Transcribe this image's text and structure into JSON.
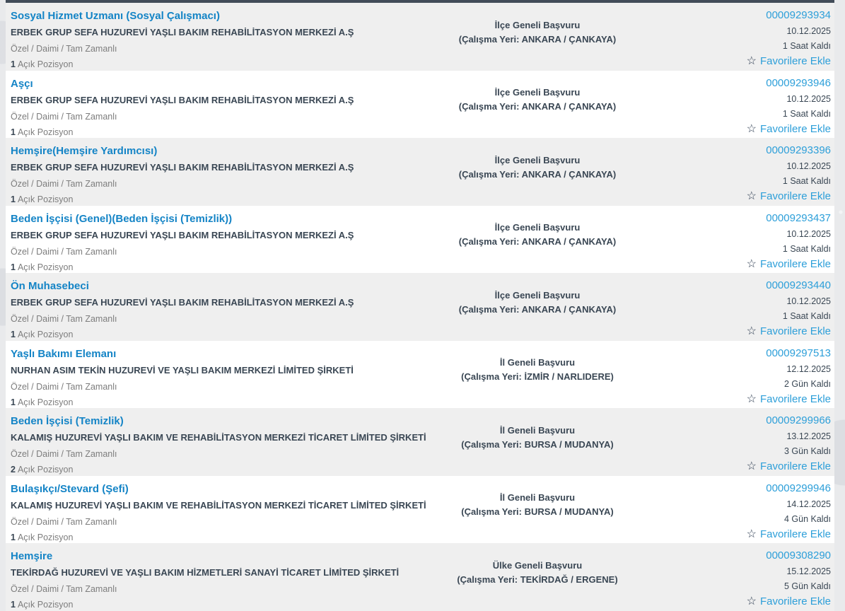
{
  "page": {
    "favorite_label": "Favorilere Ekle",
    "star_icon": "☆"
  },
  "colors": {
    "title_blue": "#1484c6",
    "link_blue": "#2d9fd9",
    "dark_text": "#3a4754",
    "muted_text": "#7d7d7d",
    "row_alt_bg": "#efefef",
    "top_bar": "#424c59"
  },
  "listings": [
    {
      "title": "Sosyal Hizmet Uzmanı (Sosyal Çalışmacı)",
      "company": "ERBEK GRUP SEFA HUZUREVİ YAŞLI BAKIM REHABİLİTASYON MERKEZİ A.Ş",
      "employment": "Özel / Daimi / Tam Zamanlı",
      "positions_count": "1",
      "positions_label": "Açık Pozisyon",
      "application_scope": "İlçe Geneli Başvuru",
      "workplace": "(Çalışma Yeri: ANKARA / ÇANKAYA)",
      "job_id": "00009293934",
      "date": "10.12.2025",
      "time_left": "1 Saat Kaldı"
    },
    {
      "title": "Aşçı",
      "company": "ERBEK GRUP SEFA HUZUREVİ YAŞLI BAKIM REHABİLİTASYON MERKEZİ A.Ş",
      "employment": "Özel / Daimi / Tam Zamanlı",
      "positions_count": "1",
      "positions_label": "Açık Pozisyon",
      "application_scope": "İlçe Geneli Başvuru",
      "workplace": "(Çalışma Yeri: ANKARA / ÇANKAYA)",
      "job_id": "00009293946",
      "date": "10.12.2025",
      "time_left": "1 Saat Kaldı"
    },
    {
      "title": "Hemşire(Hemşire Yardımcısı)",
      "company": "ERBEK GRUP SEFA HUZUREVİ YAŞLI BAKIM REHABİLİTASYON MERKEZİ A.Ş",
      "employment": "Özel / Daimi / Tam Zamanlı",
      "positions_count": "1",
      "positions_label": "Açık Pozisyon",
      "application_scope": "İlçe Geneli Başvuru",
      "workplace": "(Çalışma Yeri: ANKARA / ÇANKAYA)",
      "job_id": "00009293396",
      "date": "10.12.2025",
      "time_left": "1 Saat Kaldı"
    },
    {
      "title": "Beden İşçisi (Genel)(Beden İşçisi (Temizlik))",
      "company": "ERBEK GRUP SEFA HUZUREVİ YAŞLI BAKIM REHABİLİTASYON MERKEZİ A.Ş",
      "employment": "Özel / Daimi / Tam Zamanlı",
      "positions_count": "1",
      "positions_label": "Açık Pozisyon",
      "application_scope": "İlçe Geneli Başvuru",
      "workplace": "(Çalışma Yeri: ANKARA / ÇANKAYA)",
      "job_id": "00009293437",
      "date": "10.12.2025",
      "time_left": "1 Saat Kaldı"
    },
    {
      "title": "Ön Muhasebeci",
      "company": "ERBEK GRUP SEFA HUZUREVİ YAŞLI BAKIM REHABİLİTASYON MERKEZİ A.Ş",
      "employment": "Özel / Daimi / Tam Zamanlı",
      "positions_count": "1",
      "positions_label": "Açık Pozisyon",
      "application_scope": "İlçe Geneli Başvuru",
      "workplace": "(Çalışma Yeri: ANKARA / ÇANKAYA)",
      "job_id": "00009293440",
      "date": "10.12.2025",
      "time_left": "1 Saat Kaldı"
    },
    {
      "title": "Yaşlı Bakımı Elemanı",
      "company": "NURHAN ASIM TEKİN HUZUREVİ VE YAŞLI BAKIM MERKEZİ LİMİTED ŞİRKETİ",
      "employment": "Özel / Daimi / Tam Zamanlı",
      "positions_count": "1",
      "positions_label": "Açık Pozisyon",
      "application_scope": "İl Geneli Başvuru",
      "workplace": "(Çalışma Yeri: İZMİR / NARLIDERE)",
      "job_id": "00009297513",
      "date": "12.12.2025",
      "time_left": "2 Gün Kaldı"
    },
    {
      "title": "Beden İşçisi (Temizlik)",
      "company": "KALAMIŞ HUZUREVİ YAŞLI BAKIM VE REHABİLİTASYON MERKEZİ TİCARET LİMİTED ŞİRKETİ",
      "employment": "Özel / Daimi / Tam Zamanlı",
      "positions_count": "2",
      "positions_label": "Açık Pozisyon",
      "application_scope": "İl Geneli Başvuru",
      "workplace": "(Çalışma Yeri: BURSA / MUDANYA)",
      "job_id": "00009299966",
      "date": "13.12.2025",
      "time_left": "3 Gün Kaldı"
    },
    {
      "title": "Bulaşıkçı/Stevard (Şefi)",
      "company": "KALAMIŞ HUZUREVİ YAŞLI BAKIM VE REHABİLİTASYON MERKEZİ TİCARET LİMİTED ŞİRKETİ",
      "employment": "Özel / Daimi / Tam Zamanlı",
      "positions_count": "1",
      "positions_label": "Açık Pozisyon",
      "application_scope": "İl Geneli Başvuru",
      "workplace": "(Çalışma Yeri: BURSA / MUDANYA)",
      "job_id": "00009299946",
      "date": "14.12.2025",
      "time_left": "4 Gün Kaldı"
    },
    {
      "title": "Hemşire",
      "company": "TEKİRDAĞ HUZUREVİ VE YAŞLI BAKIM HİZMETLERİ SANAYİ TİCARET LİMİTED ŞİRKETİ",
      "employment": "Özel / Daimi / Tam Zamanlı",
      "positions_count": "1",
      "positions_label": "Açık Pozisyon",
      "application_scope": "Ülke Geneli Başvuru",
      "workplace": "(Çalışma Yeri: TEKİRDAĞ / ERGENE)",
      "job_id": "00009308290",
      "date": "15.12.2025",
      "time_left": "5 Gün Kaldı"
    }
  ]
}
